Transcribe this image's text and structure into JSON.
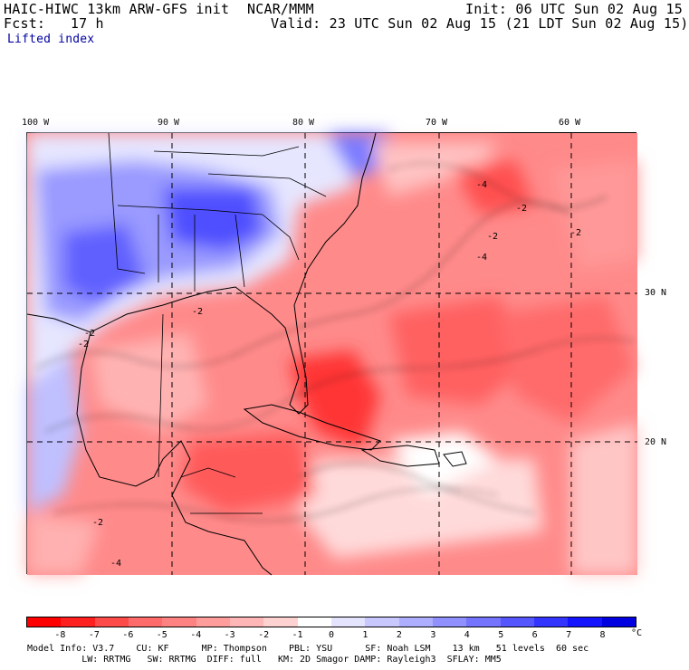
{
  "header": {
    "model": "HAIC-HIWC 13km ARW-GFS init",
    "center": "NCAR/MMM",
    "init": "Init: 06 UTC Sun 02 Aug 15",
    "fcst": "Fcst:   17 h",
    "valid": "Valid: 23 UTC Sun 02 Aug 15 (21 LDT Sun 02 Aug 15)",
    "field": "Lifted index"
  },
  "axes": {
    "lon_labels": [
      "100 W",
      "90 W",
      "80 W",
      "70 W",
      "60 W"
    ],
    "lat_labels": [
      "30 N",
      "20 N"
    ]
  },
  "map": {
    "contour_labels": [
      "-2",
      "-4",
      "-2",
      "-2",
      "-4",
      "-2",
      "-2",
      "-2",
      "-2",
      "-4"
    ]
  },
  "colorbar": {
    "labels": [
      "-8",
      "-7",
      "-6",
      "-5",
      "-4",
      "-3",
      "-2",
      "-1",
      "0",
      "1",
      "2",
      "3",
      "4",
      "5",
      "6",
      "7",
      "8"
    ],
    "unit": "°C",
    "colors": [
      "#ff0000",
      "#ff2020",
      "#ff4a4a",
      "#ff6a6a",
      "#ff8282",
      "#ff9c9c",
      "#ffb6b6",
      "#ffd2d2",
      "#ffffff",
      "#e4e4ff",
      "#c8c8ff",
      "#aeaeff",
      "#9090ff",
      "#7474ff",
      "#5656ff",
      "#3434ff",
      "#1414ff",
      "#0000e0"
    ]
  },
  "footer": {
    "line1": "Model Info: V3.7    CU: KF      MP: Thompson    PBL: YSU      SF: Noah LSM    13 km   51 levels  60 sec",
    "line2": "          LW: RRTMG   SW: RRTMG  DIFF: full   KM: 2D Smagor DAMP: Rayleigh3  SFLAY: MM5"
  }
}
